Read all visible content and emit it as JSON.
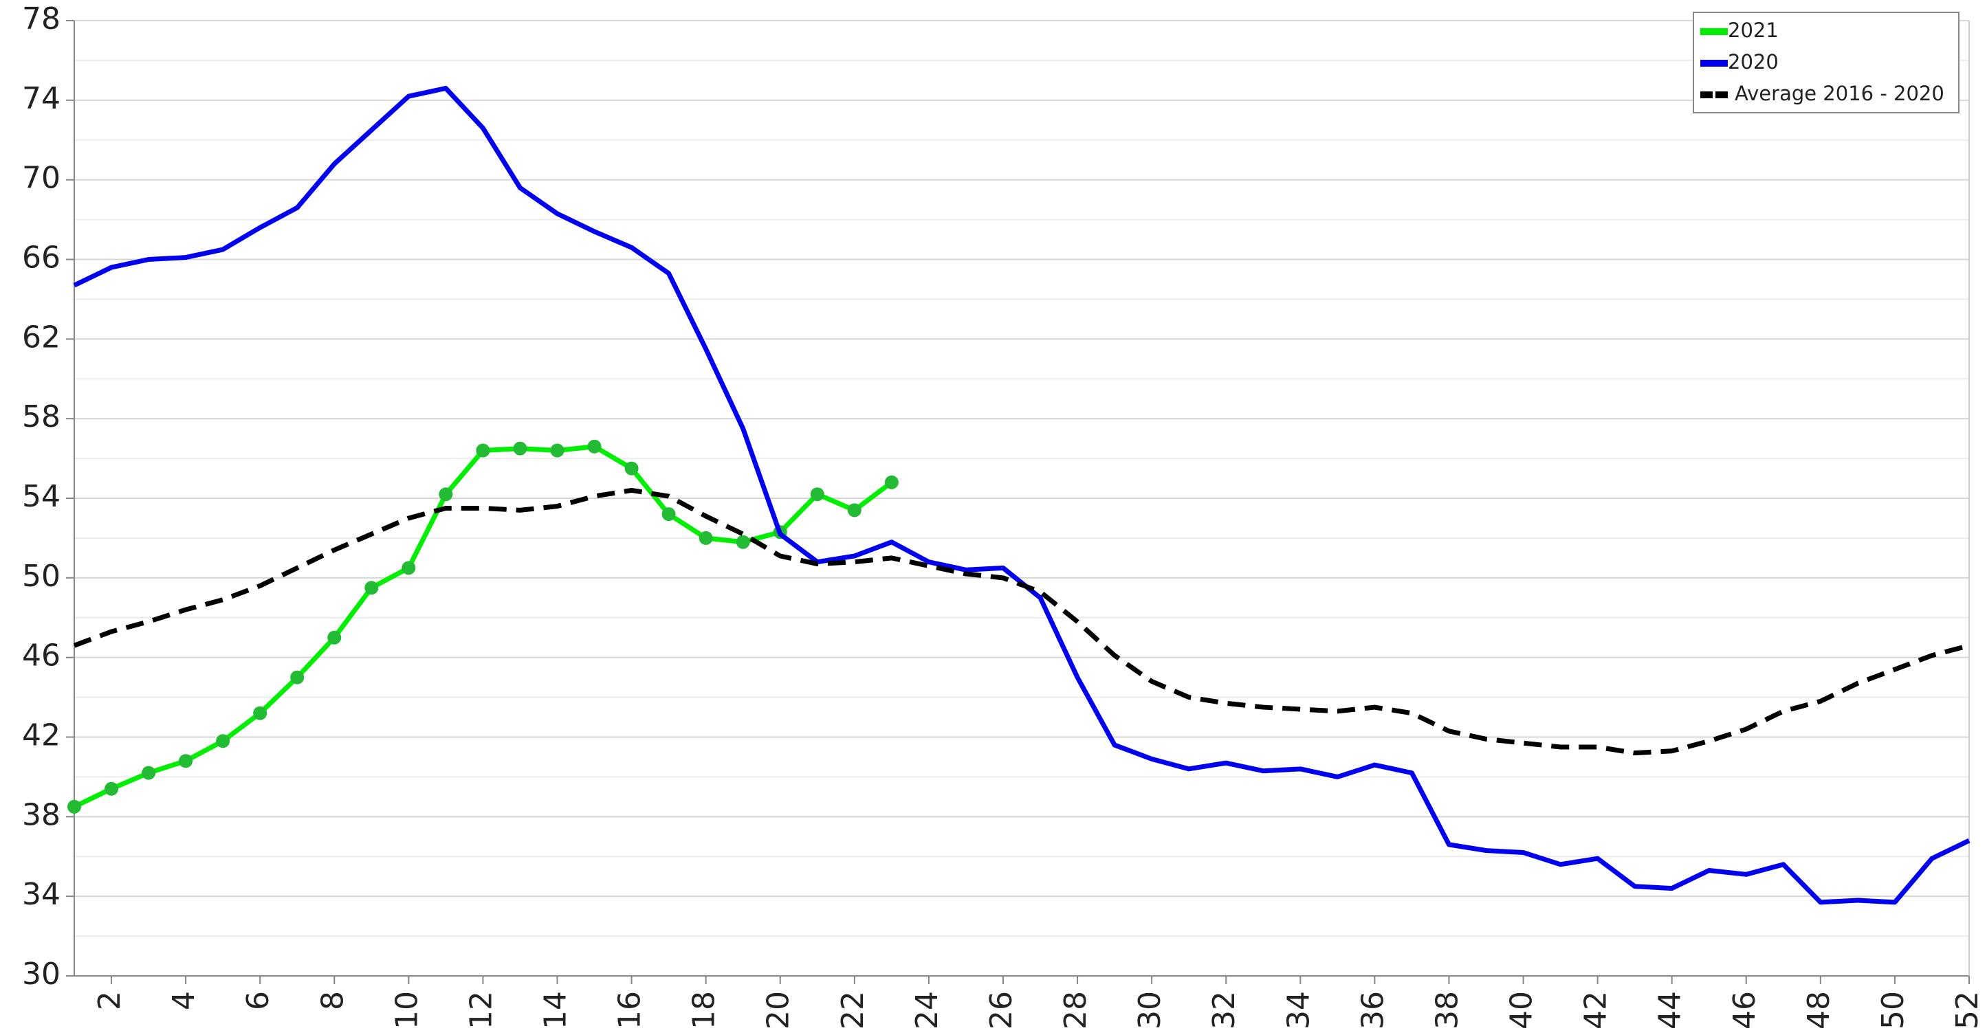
{
  "chart_data": {
    "type": "line",
    "x": [
      1,
      2,
      3,
      4,
      5,
      6,
      7,
      8,
      9,
      10,
      11,
      12,
      13,
      14,
      15,
      16,
      17,
      18,
      19,
      20,
      21,
      22,
      23,
      24,
      25,
      26,
      27,
      28,
      29,
      30,
      31,
      32,
      33,
      34,
      35,
      36,
      37,
      38,
      39,
      40,
      41,
      42,
      43,
      44,
      45,
      46,
      47,
      48,
      49,
      50,
      51,
      52
    ],
    "series": [
      {
        "name": "2021",
        "color": "#00ee00",
        "markers": true,
        "values": [
          38.5,
          39.4,
          40.2,
          40.8,
          41.8,
          43.2,
          45.0,
          47.0,
          49.5,
          50.5,
          54.2,
          56.4,
          56.5,
          56.4,
          56.6,
          55.5,
          53.2,
          52.0,
          51.8,
          52.3,
          54.2,
          53.4,
          54.8,
          null,
          null,
          null,
          null,
          null,
          null,
          null,
          null,
          null,
          null,
          null,
          null,
          null,
          null,
          null,
          null,
          null,
          null,
          null,
          null,
          null,
          null,
          null,
          null,
          null,
          null,
          null,
          null,
          null
        ]
      },
      {
        "name": "2020",
        "color": "#0000ee",
        "values": [
          64.7,
          65.6,
          66.0,
          66.1,
          66.5,
          67.6,
          68.6,
          70.8,
          72.5,
          74.2,
          74.6,
          72.6,
          69.6,
          68.3,
          67.4,
          66.6,
          65.3,
          61.5,
          57.5,
          52.2,
          50.8,
          51.1,
          51.8,
          50.8,
          50.4,
          50.5,
          49.0,
          45.0,
          41.6,
          40.9,
          40.4,
          40.7,
          40.3,
          40.4,
          40.0,
          40.6,
          40.2,
          36.6,
          36.3,
          36.2,
          35.6,
          35.9,
          34.5,
          34.4,
          35.3,
          35.1,
          35.6,
          33.7,
          33.8,
          33.7,
          35.9,
          36.8
        ]
      },
      {
        "name": "Average 2016 - 2020",
        "color": "#000000",
        "dash": true,
        "values": [
          46.6,
          47.3,
          47.8,
          48.4,
          48.9,
          49.6,
          50.5,
          51.4,
          52.2,
          53.0,
          53.5,
          53.5,
          53.4,
          53.6,
          54.1,
          54.4,
          54.1,
          53.1,
          52.2,
          51.1,
          50.7,
          50.8,
          51.0,
          50.6,
          50.2,
          50.0,
          49.3,
          47.8,
          46.1,
          44.8,
          44.0,
          43.7,
          43.5,
          43.4,
          43.3,
          43.5,
          43.2,
          42.3,
          41.9,
          41.7,
          41.5,
          41.5,
          41.2,
          41.3,
          41.8,
          42.4,
          43.3,
          43.8,
          44.7,
          45.4,
          46.1,
          46.6
        ]
      }
    ],
    "xlim": [
      1,
      52
    ],
    "xticks": [
      2,
      4,
      6,
      8,
      10,
      12,
      14,
      16,
      18,
      20,
      22,
      24,
      26,
      28,
      30,
      32,
      34,
      36,
      38,
      40,
      42,
      44,
      46,
      48,
      50,
      52
    ],
    "ylim": [
      30,
      78
    ],
    "yticks": [
      30,
      34,
      38,
      42,
      46,
      50,
      54,
      58,
      62,
      66,
      70,
      74,
      78
    ],
    "yminorticks": [
      32,
      36,
      40,
      44,
      48,
      52,
      56,
      60,
      64,
      68,
      72,
      76
    ],
    "grid": true,
    "legend": "upper right"
  }
}
